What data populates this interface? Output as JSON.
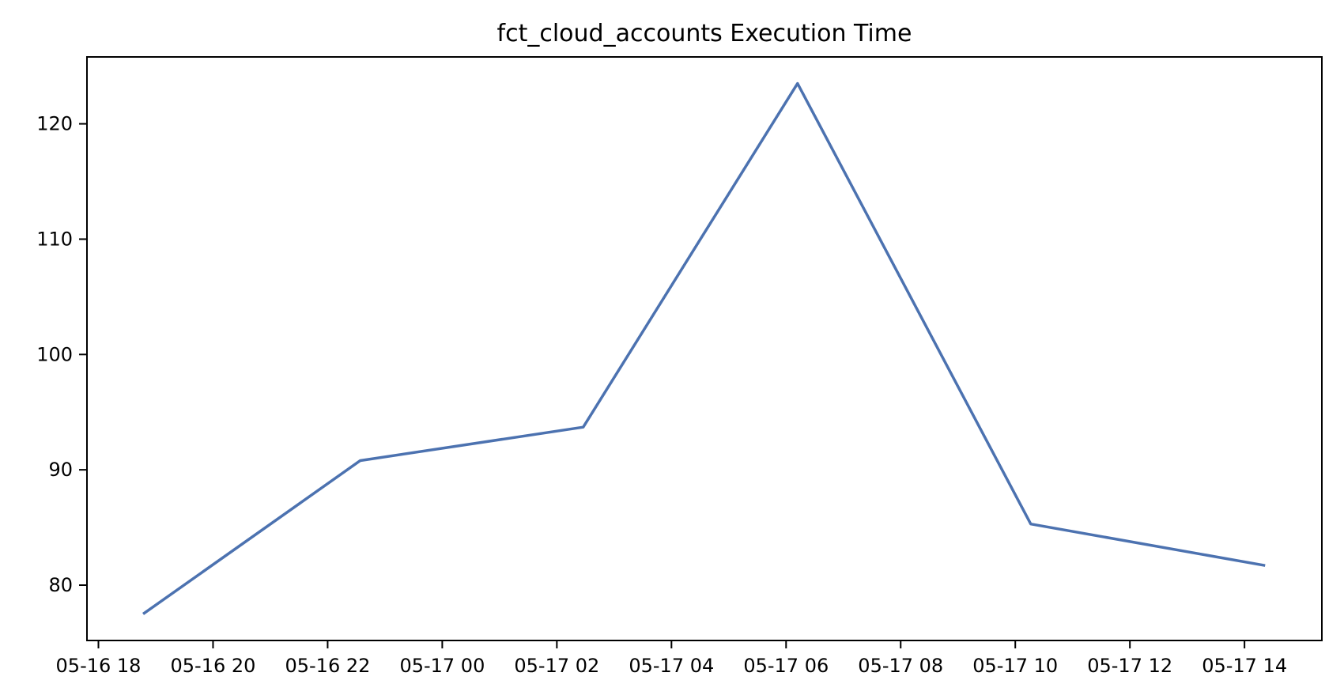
{
  "page": {
    "background": "#ffffff"
  },
  "chart_data": {
    "type": "line",
    "title": "fct_cloud_accounts Execution Time",
    "xlabel": "",
    "ylabel": "",
    "grid": false,
    "legend_position": "none",
    "axis_color": "#000000",
    "x_tick_labels": [
      "05-16 18",
      "05-16 20",
      "05-16 22",
      "05-17 00",
      "05-17 02",
      "05-17 04",
      "05-17 06",
      "05-17 08",
      "05-17 10",
      "05-17 12",
      "05-17 14"
    ],
    "x_tick_hours": [
      0,
      2,
      4,
      6,
      8,
      10,
      12,
      14,
      16,
      18,
      20
    ],
    "y_ticks": [
      80,
      90,
      100,
      110,
      120
    ],
    "x_range_hours": [
      -0.2,
      21.35
    ],
    "y_range": [
      75.2,
      125.8
    ],
    "series": [
      {
        "name": "execution_time",
        "color": "#4C72B0",
        "line_width": 3.5,
        "x_hours": [
          0.78,
          4.57,
          8.46,
          12.2,
          16.27,
          20.36
        ],
        "x_times": [
          "05-16 18:47",
          "05-16 22:34",
          "05-17 02:28",
          "05-17 06:12",
          "05-17 10:16",
          "05-17 14:22"
        ],
        "values": [
          77.5,
          90.8,
          93.7,
          123.5,
          85.3,
          81.7
        ]
      }
    ]
  }
}
